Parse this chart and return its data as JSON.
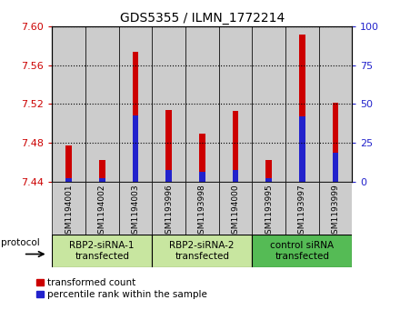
{
  "title": "GDS5355 / ILMN_1772214",
  "samples": [
    "GSM1194001",
    "GSM1194002",
    "GSM1194003",
    "GSM1193996",
    "GSM1193998",
    "GSM1194000",
    "GSM1193995",
    "GSM1193997",
    "GSM1193999"
  ],
  "red_tops": [
    7.477,
    7.462,
    7.574,
    7.514,
    7.489,
    7.513,
    7.462,
    7.592,
    7.521
  ],
  "blue_tops": [
    7.4435,
    7.4435,
    7.508,
    7.452,
    7.45,
    7.452,
    7.4435,
    7.507,
    7.47
  ],
  "bar_bottom": 7.44,
  "ylim_left": [
    7.44,
    7.6
  ],
  "ylim_right": [
    0,
    100
  ],
  "yticks_left": [
    7.44,
    7.48,
    7.52,
    7.56,
    7.6
  ],
  "yticks_right": [
    0,
    25,
    50,
    75,
    100
  ],
  "groups": [
    {
      "label": "RBP2-siRNA-1\ntransfected",
      "start": 0,
      "end": 3,
      "color": "#c8e6a0"
    },
    {
      "label": "RBP2-siRNA-2\ntransfected",
      "start": 3,
      "end": 6,
      "color": "#c8e6a0"
    },
    {
      "label": "control siRNA\ntransfected",
      "start": 6,
      "end": 9,
      "color": "#55bb55"
    }
  ],
  "red_color": "#cc0000",
  "blue_color": "#2222cc",
  "bar_width": 0.18,
  "cell_color": "#cccccc",
  "plot_bg": "#ffffff",
  "legend_red": "transformed count",
  "legend_blue": "percentile rank within the sample",
  "protocol_label": "protocol"
}
